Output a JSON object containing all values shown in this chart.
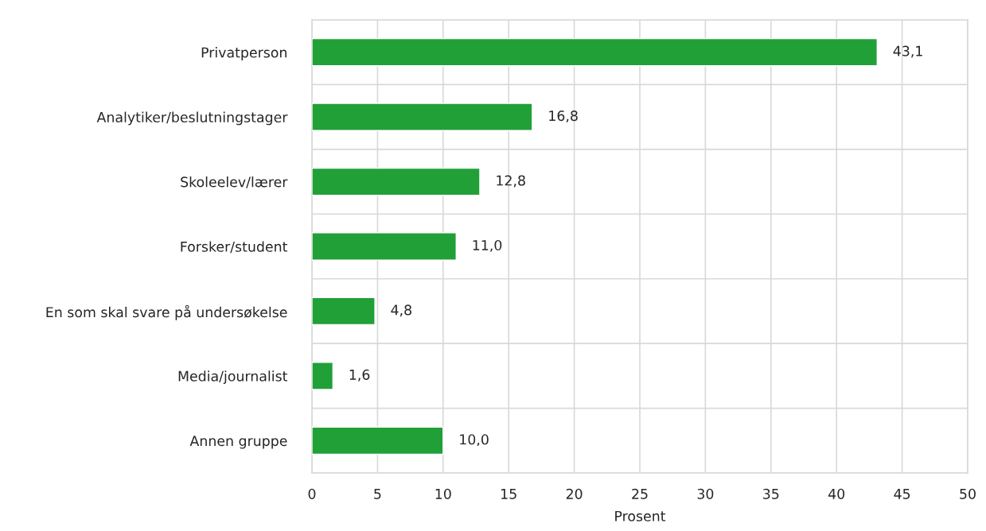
{
  "chart_data": {
    "type": "bar",
    "orientation": "horizontal",
    "xlabel": "Prosent",
    "categories": [
      "Privatperson",
      "Analytiker/beslutningstager",
      "Skoleelev/lærer",
      "Forsker/student",
      "En som skal svare på undersøkelse",
      "Media/journalist",
      "Annen gruppe"
    ],
    "values": [
      43.1,
      16.8,
      12.8,
      11.0,
      4.8,
      1.6,
      10.0
    ],
    "value_labels": [
      "43,1",
      "16,8",
      "12,8",
      "11,0",
      "4,8",
      "1,6",
      "10,0"
    ],
    "color": "#21a038",
    "xlim": [
      0,
      50
    ],
    "xticks": [
      0,
      5,
      10,
      15,
      20,
      25,
      30,
      35,
      40,
      45,
      50
    ],
    "grid": true
  }
}
